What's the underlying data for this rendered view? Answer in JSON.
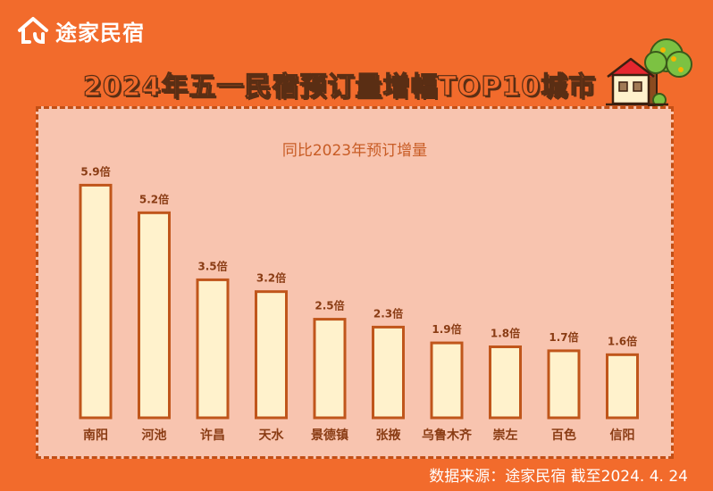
{
  "brand": {
    "logo_text": "途家民宿",
    "logo_icon": "house-logo-icon"
  },
  "header": {
    "title": "2024年五一民宿预订量增幅TOP10城市",
    "illustration": "house-with-tree-icon"
  },
  "colors": {
    "background": "#f26b2c",
    "panel": "#f8c4af",
    "bar_fill": "#fff2cc",
    "bar_stroke": "#c0561b",
    "label_text": "#8a3c14"
  },
  "chart_data": {
    "type": "bar",
    "title": "同比2023年预订增量",
    "categories": [
      "南阳",
      "河池",
      "许昌",
      "天水",
      "景德镇",
      "张掖",
      "乌鲁木齐",
      "崇左",
      "百色",
      "信阳"
    ],
    "values": [
      5.9,
      5.2,
      3.5,
      3.2,
      2.5,
      2.3,
      1.9,
      1.8,
      1.7,
      1.6
    ],
    "data_labels": [
      "5.9倍",
      "5.2倍",
      "3.5倍",
      "3.2倍",
      "2.5倍",
      "2.3倍",
      "1.9倍",
      "1.8倍",
      "1.7倍",
      "1.6倍"
    ],
    "unit": "倍",
    "ylim": [
      0,
      6
    ],
    "grid": false,
    "legend": "none"
  },
  "footer": {
    "source": "数据来源：途家民宿  截至2024. 4. 24"
  }
}
